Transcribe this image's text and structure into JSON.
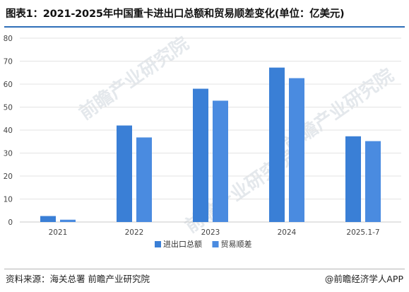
{
  "title": "图表1：2021-2025年中国重卡进出口总额和贸易顺差变化(单位：亿美元)",
  "watermark": "前瞻产业研究院",
  "footer": {
    "source": "资料来源：海关总署 前瞻产业研究院",
    "brand": "@前瞻经济学人APP"
  },
  "colors": {
    "series1": "#3a7fd6",
    "series2": "#4a8be0",
    "accent_line": "#2f6fb8"
  },
  "chart_data": {
    "type": "bar",
    "categories": [
      "2021",
      "2022",
      "2023",
      "2024",
      "2025.1-7"
    ],
    "series": [
      {
        "name": "进出口总额",
        "values": [
          2.6,
          42.0,
          58.0,
          67.2,
          37.3
        ]
      },
      {
        "name": "贸易顺差",
        "values": [
          1.0,
          36.8,
          52.8,
          62.6,
          35.2
        ]
      }
    ],
    "ylim": [
      0,
      80
    ],
    "yticks": [
      0,
      10,
      20,
      30,
      40,
      50,
      60,
      70,
      80
    ],
    "xlabel": "",
    "ylabel": "",
    "grid": true,
    "legend": "bottom-center"
  }
}
